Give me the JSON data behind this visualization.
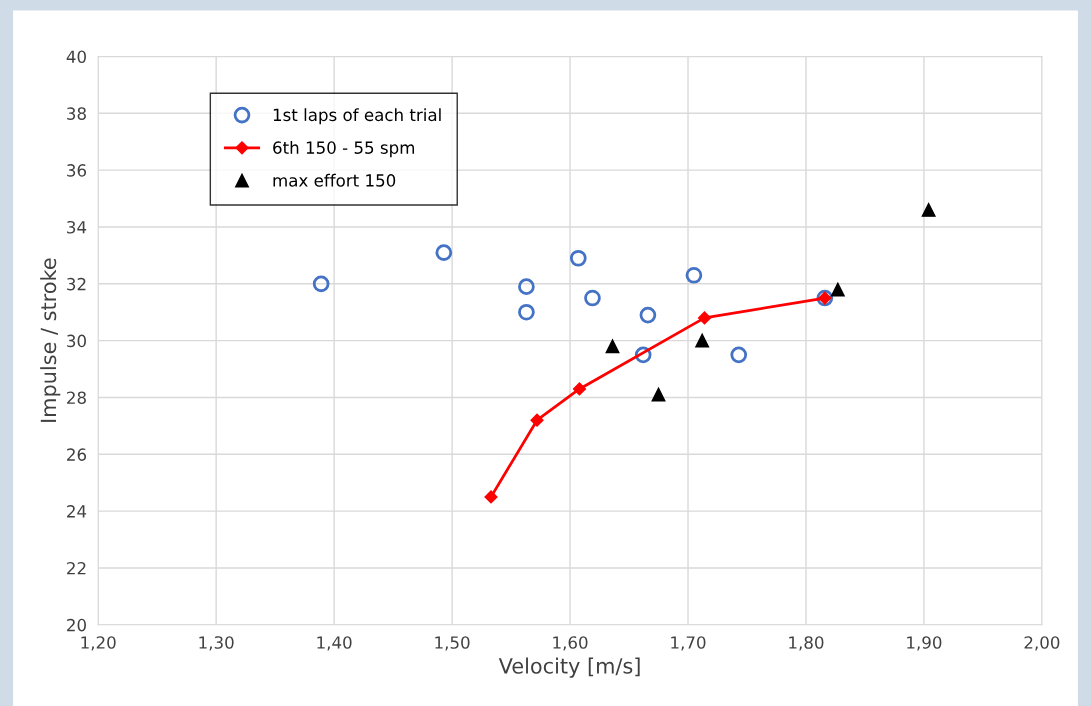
{
  "chart_data": {
    "type": "scatter",
    "xlabel": "Velocity [m/s]",
    "ylabel": "Impulse / stroke",
    "xlim": [
      1.2,
      2.0
    ],
    "xticks": [
      {
        "value": 1.2,
        "label": "1,20"
      },
      {
        "value": 1.3,
        "label": "1,30"
      },
      {
        "value": 1.4,
        "label": "1,40"
      },
      {
        "value": 1.5,
        "label": "1,50"
      },
      {
        "value": 1.6,
        "label": "1,60"
      },
      {
        "value": 1.7,
        "label": "1,70"
      },
      {
        "value": 1.8,
        "label": "1,80"
      },
      {
        "value": 1.9,
        "label": "1,90"
      },
      {
        "value": 2.0,
        "label": "2,00"
      }
    ],
    "ylim": [
      20,
      40
    ],
    "yticks": [
      20,
      22,
      24,
      26,
      28,
      30,
      32,
      34,
      36,
      38,
      40
    ],
    "grid": true,
    "legend": "top left",
    "series": [
      {
        "name": "1st laps of each trial",
        "marker": "circle",
        "color": "#4472c4",
        "x": [
          1.389,
          1.493,
          1.563,
          1.563,
          1.607,
          1.619,
          1.666,
          1.662,
          1.705,
          1.743,
          1.816
        ],
        "values": [
          32.0,
          33.1,
          31.9,
          31.0,
          32.9,
          31.5,
          30.9,
          29.5,
          32.3,
          29.5,
          31.5
        ]
      },
      {
        "name": "6th 150 - 55 spm",
        "type": "line",
        "marker": "diamond",
        "color": "#ff0000",
        "x": [
          1.533,
          1.572,
          1.608,
          1.714,
          1.816
        ],
        "values": [
          24.5,
          27.2,
          28.3,
          30.8,
          31.5
        ]
      },
      {
        "name": "max effort 150",
        "marker": "triangle",
        "color": "#000000",
        "x": [
          1.636,
          1.675,
          1.712,
          1.827,
          1.904
        ],
        "values": [
          29.8,
          28.1,
          30.0,
          31.8,
          34.6
        ]
      }
    ]
  }
}
